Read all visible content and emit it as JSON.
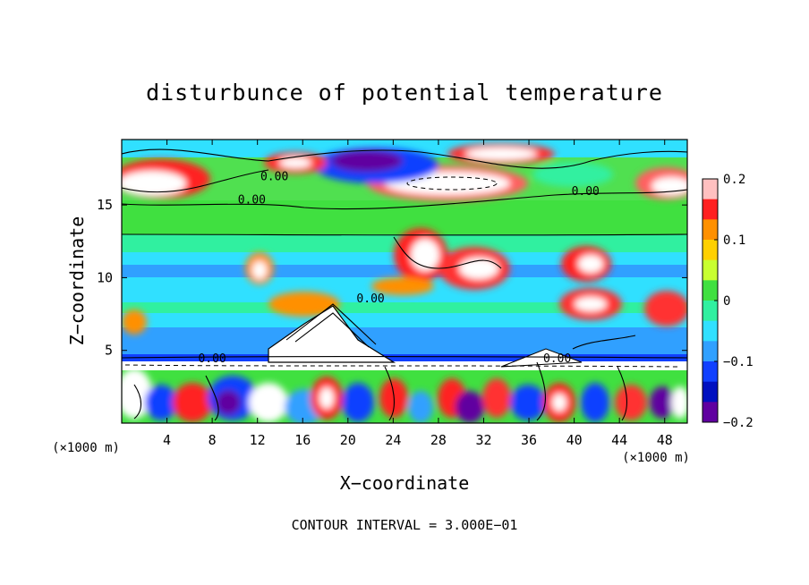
{
  "chart_data": {
    "type": "heatmap",
    "title": "disturbunce of potential temperature",
    "xlabel": "X−coordinate",
    "ylabel": "Z−coordinate",
    "x_unit_left": "(×1000 m)",
    "x_unit_right": "(×1000 m)",
    "footer": "CONTOUR INTERVAL = 3.000E−01",
    "xlim": [
      0,
      50
    ],
    "ylim": [
      0,
      19.5
    ],
    "x_ticks": [
      4,
      8,
      12,
      16,
      20,
      24,
      28,
      32,
      36,
      40,
      44,
      48
    ],
    "y_ticks": [
      5,
      10,
      15
    ],
    "colorbar": {
      "min": -0.2,
      "max": 0.2,
      "ticks": [
        0.2,
        0.1,
        0,
        -0.1,
        -0.2
      ],
      "tick_labels": [
        "0.2",
        "0.1",
        "0",
        "−0.1",
        "−0.2"
      ],
      "colors": [
        "#ffc0c0",
        "#ff2020",
        "#ff9000",
        "#ffd000",
        "#c8ff30",
        "#40e040",
        "#30f0a0",
        "#30e0ff",
        "#30a0ff",
        "#1040ff",
        "#0010c0",
        "#6000a0"
      ]
    },
    "contour_labels": [
      {
        "text": "0.00",
        "x": 13.5,
        "z": 17.0
      },
      {
        "text": "0.00",
        "x": 11.5,
        "z": 15.4
      },
      {
        "text": "0.00",
        "x": 41.0,
        "z": 16.0
      },
      {
        "text": "0.00",
        "x": 22.0,
        "z": 8.6
      },
      {
        "text": "0.00",
        "x": 8.0,
        "z": 4.5
      },
      {
        "text": "0.00",
        "x": 38.5,
        "z": 4.5
      }
    ]
  }
}
